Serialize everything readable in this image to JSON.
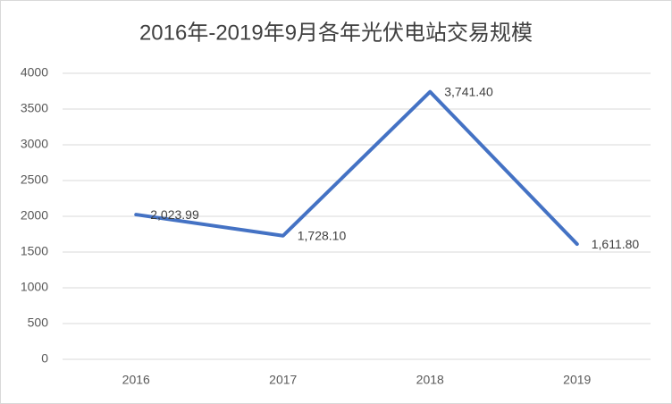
{
  "chart_data": {
    "type": "line",
    "title": "2016年-2019年9月各年光伏电站交易规模",
    "categories": [
      "2016",
      "2017",
      "2018",
      "2019"
    ],
    "series": [
      {
        "color": "#4472c4",
        "values": [
          2023.99,
          1728.1,
          3741.4,
          1611.8
        ],
        "value_labels": [
          "2,023.99",
          "1,728.10",
          "3,741.40",
          "1,611.80"
        ]
      }
    ],
    "ylim": [
      0,
      4000
    ],
    "yticks": [
      0,
      500,
      1000,
      1500,
      2000,
      2500,
      3000,
      3500,
      4000
    ],
    "grid": true
  }
}
